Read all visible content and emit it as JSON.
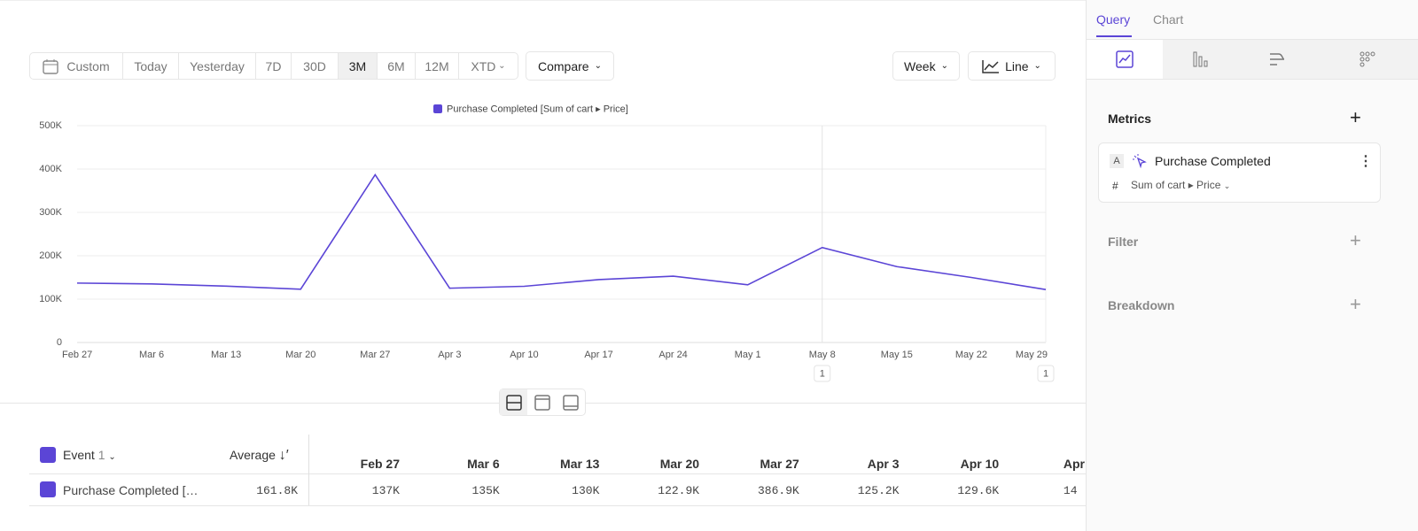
{
  "toolbar": {
    "ranges": [
      "Custom",
      "Today",
      "Yesterday",
      "7D",
      "30D",
      "3M",
      "6M",
      "12M",
      "XTD"
    ],
    "selected_range": "3M",
    "compare": "Compare",
    "interval": "Week",
    "chart_type": "Line"
  },
  "chart_data": {
    "type": "line",
    "categories": [
      "Feb 27",
      "Mar 6",
      "Mar 13",
      "Mar 20",
      "Mar 27",
      "Apr 3",
      "Apr 10",
      "Apr 17",
      "Apr 24",
      "May 1",
      "May 8",
      "May 15",
      "May 22",
      "May 29"
    ],
    "series": [
      {
        "name": "Purchase Completed [Sum of cart ▸ Price]",
        "color": "#5b45d6",
        "values": [
          137000,
          135000,
          130000,
          122900,
          386900,
          125200,
          129600,
          145000,
          153000,
          133000,
          219000,
          175000,
          150000,
          122000
        ]
      }
    ],
    "ylim": [
      0,
      500000
    ],
    "yticks": [
      0,
      {
        "value": 100000,
        "label": "100K"
      },
      {
        "value": 200000,
        "label": "200K"
      },
      {
        "value": 300000,
        "label": "300K"
      },
      {
        "value": 400000,
        "label": "400K"
      },
      {
        "value": 500000,
        "label": "500K"
      }
    ],
    "annotation_labels": [
      null,
      null,
      null,
      null,
      null,
      null,
      null,
      null,
      null,
      null,
      "1",
      null,
      null,
      "1"
    ],
    "grid": true,
    "legend": "top"
  },
  "table": {
    "header": {
      "event": "Event",
      "event_count": "1",
      "average": "Average",
      "columns": [
        "Feb 27",
        "Mar 6",
        "Mar 13",
        "Mar 20",
        "Mar 27",
        "Apr 3",
        "Apr 10",
        "Apr"
      ]
    },
    "rows": [
      {
        "event": "Purchase Completed […",
        "average": "161.8K",
        "values": [
          "137K",
          "135K",
          "130K",
          "122.9K",
          "386.9K",
          "125.2K",
          "129.6K",
          "14"
        ]
      }
    ]
  },
  "sidebar": {
    "tabs": [
      "Query",
      "Chart"
    ],
    "metrics_title": "Metrics",
    "metrics": [
      {
        "letter": "A",
        "name": "Purchase Completed",
        "measure": "Sum of cart ▸ Price"
      }
    ],
    "filter": "Filter",
    "breakdown": "Breakdown"
  }
}
